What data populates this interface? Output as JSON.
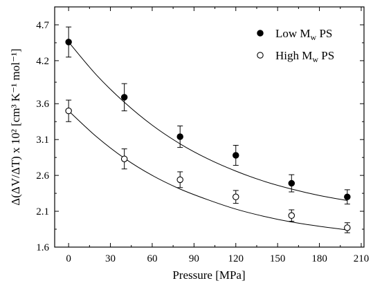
{
  "chart_data": {
    "type": "scatter",
    "xlabel": "Pressure [MPa]",
    "ylabel": "Δ(ΔV/ΔT) x 10² [cm³ K⁻¹ mol⁻¹]",
    "xlim": [
      -10,
      212
    ],
    "ylim": [
      1.6,
      4.95
    ],
    "xticks": [
      0,
      30,
      60,
      90,
      120,
      150,
      180,
      210
    ],
    "yticks": [
      1.6,
      2.1,
      2.6,
      3.1,
      3.6,
      4.2,
      4.7
    ],
    "ytick_labels": [
      "1.6",
      "2.1",
      "2.6",
      "3.1",
      "3.6",
      "4.2",
      "4.7"
    ],
    "legend_position": "top-right",
    "grid": false,
    "series": [
      {
        "name": "Low Mw PS",
        "legend_main": "Low M",
        "legend_sub": "w",
        "legend_tail": " PS",
        "marker": "filled-circle",
        "x": [
          0,
          40,
          80,
          120,
          160,
          200
        ],
        "y": [
          4.46,
          3.69,
          3.14,
          2.88,
          2.49,
          2.3
        ],
        "err": [
          0.21,
          0.19,
          0.15,
          0.14,
          0.12,
          0.1
        ],
        "fit_x": [
          0,
          20,
          40,
          60,
          80,
          100,
          120,
          140,
          160,
          180,
          200
        ],
        "fit_y": [
          4.46,
          4.0,
          3.62,
          3.3,
          3.04,
          2.83,
          2.66,
          2.52,
          2.41,
          2.32,
          2.25
        ]
      },
      {
        "name": "High Mw PS",
        "legend_main": "High M",
        "legend_sub": "w",
        "legend_tail": " PS",
        "marker": "open-circle",
        "x": [
          0,
          40,
          80,
          120,
          160,
          200
        ],
        "y": [
          3.5,
          2.83,
          2.54,
          2.3,
          2.04,
          1.87
        ],
        "err": [
          0.15,
          0.14,
          0.11,
          0.09,
          0.08,
          0.07
        ],
        "fit_x": [
          0,
          20,
          40,
          60,
          80,
          100,
          120,
          140,
          160,
          180,
          200
        ],
        "fit_y": [
          3.5,
          3.14,
          2.84,
          2.6,
          2.41,
          2.26,
          2.13,
          2.03,
          1.95,
          1.89,
          1.84
        ]
      }
    ]
  }
}
